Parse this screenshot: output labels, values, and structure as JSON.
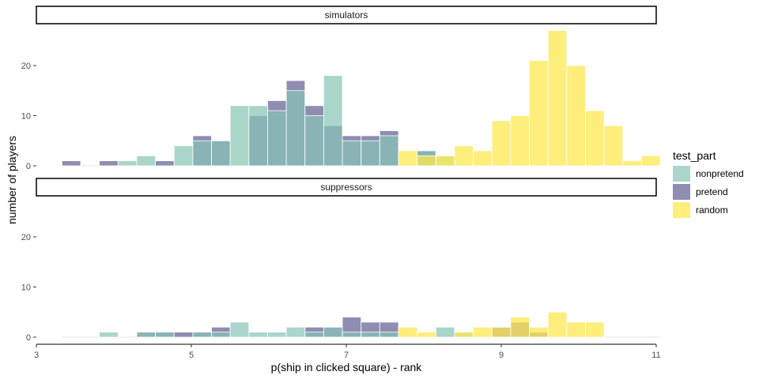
{
  "chart_data": {
    "type": "bar",
    "subtype": "faceted overlapping histogram",
    "xlabel": "p(ship in clicked square) - rank",
    "ylabel": "number of players",
    "xlim": [
      3,
      11
    ],
    "ylim": [
      0,
      28
    ],
    "x_ticks": [
      3,
      5,
      7,
      9,
      11
    ],
    "y_ticks": [
      0,
      10,
      20
    ],
    "bin_width": 0.2413,
    "bin_start": 3.33,
    "grid": false,
    "legend": {
      "title": "test_part",
      "placement": "right",
      "items": [
        {
          "label": "nonpretend",
          "color": "#86c3b5"
        },
        {
          "label": "pretend",
          "color": "#5f5c91"
        },
        {
          "label": "random",
          "color": "#fde84f"
        }
      ]
    },
    "colors": {
      "nonpretend": "#86c3b5",
      "pretend": "#5f5c91",
      "random": "#fde84f"
    },
    "panels": [
      {
        "title": "simulators",
        "series": [
          {
            "name": "pretend",
            "values": [
              1,
              0,
              1,
              0,
              0,
              1,
              0,
              6,
              5,
              0,
              10,
              13,
              17,
              12,
              8,
              6,
              6,
              7,
              0,
              3,
              0,
              0,
              0,
              0,
              0,
              0,
              0,
              0,
              0,
              0,
              0,
              0
            ]
          },
          {
            "name": "nonpretend",
            "values": [
              0,
              0,
              0,
              1,
              2,
              0,
              4,
              5,
              5,
              12,
              12,
              11,
              15,
              10,
              18,
              5,
              5,
              6,
              0,
              3,
              2,
              0,
              0,
              0,
              0,
              0,
              0,
              0,
              0,
              0,
              0,
              0
            ]
          },
          {
            "name": "random",
            "values": [
              0,
              0,
              0,
              0,
              0,
              0,
              0,
              0,
              0,
              0,
              0,
              0,
              0,
              0,
              0,
              0,
              0,
              0,
              3,
              2,
              2,
              4,
              3,
              9,
              10,
              21,
              27,
              20,
              11,
              8,
              1,
              2
            ]
          }
        ]
      },
      {
        "title": "suppressors",
        "series": [
          {
            "name": "pretend",
            "values": [
              0,
              0,
              0,
              0,
              1,
              1,
              1,
              1,
              2,
              0,
              0,
              0,
              0,
              2,
              2,
              4,
              3,
              3,
              0,
              0,
              0,
              0,
              0,
              2,
              3,
              1,
              0,
              0,
              0,
              0,
              0,
              0
            ]
          },
          {
            "name": "nonpretend",
            "values": [
              0,
              0,
              1,
              0,
              1,
              1,
              0,
              1,
              1,
              3,
              1,
              1,
              2,
              1,
              2,
              1,
              1,
              1,
              0,
              0,
              2,
              1,
              0,
              0,
              0,
              0,
              0,
              0,
              0,
              0,
              0,
              0
            ]
          },
          {
            "name": "random",
            "values": [
              0,
              0,
              0,
              0,
              0,
              0,
              0,
              0,
              0,
              0,
              0,
              0,
              0,
              0,
              0,
              0,
              0,
              0,
              2,
              1,
              0,
              1,
              2,
              2,
              4,
              2,
              5,
              3,
              3,
              0,
              0,
              0
            ]
          }
        ]
      }
    ]
  }
}
